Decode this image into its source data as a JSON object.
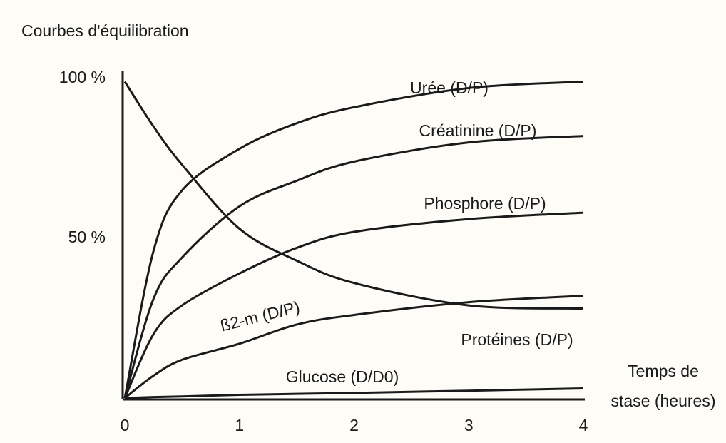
{
  "chart_data": {
    "type": "line",
    "title": "Courbes d'équilibration",
    "xlabel": [
      "Temps de",
      "stase (heures)"
    ],
    "x": [
      0,
      0.25,
      0.5,
      1,
      1.5,
      2,
      3,
      4
    ],
    "series": [
      {
        "name": "Urée (D/P)",
        "color": "#1a1a1a",
        "values": [
          0,
          46,
          65,
          78,
          86,
          91,
          97,
          99
        ]
      },
      {
        "name": "Créatinine (D/P)",
        "color": "#1a1a1a",
        "values": [
          0,
          31,
          44,
          60,
          68,
          74,
          80,
          82
        ]
      },
      {
        "name": "Phosphore (D/P)",
        "color": "#1a1a1a",
        "values": [
          0,
          20,
          29,
          39,
          47,
          52,
          56,
          58
        ]
      },
      {
        "name": "ß2-m (D/P)",
        "color": "#1a1a1a",
        "values": [
          0,
          7,
          12,
          17,
          23,
          26,
          30,
          32
        ]
      },
      {
        "name": "Protéines (D/P)",
        "color": "#1a1a1a",
        "values": [
          0,
          0.3,
          0.5,
          1,
          1.3,
          1.6,
          2.3,
          3
        ]
      },
      {
        "name": "Glucose (D/D0)",
        "color": "#1a1a1a",
        "values": [
          99,
          85,
          73,
          53,
          43,
          36,
          29,
          28
        ]
      }
    ],
    "xlim": [
      0,
      4
    ],
    "xticks": [
      0,
      1,
      2,
      3,
      4
    ],
    "ylim": [
      0,
      100
    ],
    "yticks": [
      {
        "value": 100,
        "label": "100 %"
      },
      {
        "value": 50,
        "label": "50 %"
      }
    ],
    "grid": false
  }
}
